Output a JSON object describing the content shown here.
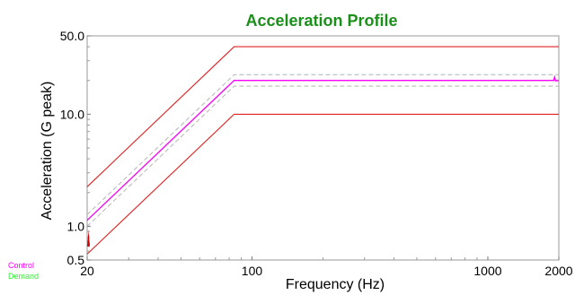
{
  "chart_data": {
    "type": "line",
    "title": "Acceleration Profile",
    "xlabel": "Frequency (Hz)",
    "ylabel": "Acceleration (G peak)",
    "xscale": "log",
    "yscale": "log",
    "xlim": [
      20,
      2000
    ],
    "ylim": [
      0.5,
      50
    ],
    "xticks": [
      20,
      100,
      1000,
      2000
    ],
    "xtick_labels": [
      "20",
      "100",
      "1000",
      "2000"
    ],
    "yticks": [
      0.5,
      1,
      10,
      50
    ],
    "ytick_labels": [
      "0.5",
      "1.0",
      "10.0",
      "50.0"
    ],
    "grid": false,
    "legend_position": "bottom-left",
    "series": [
      {
        "name": "Control",
        "color": "#ff00ff",
        "x": [
          20,
          84,
          1900,
          1920,
          1940,
          2000
        ],
        "y": [
          1.13,
          20.0,
          20.0,
          21.5,
          19.8,
          20.0
        ]
      },
      {
        "name": "Demand",
        "color": "#33ee33",
        "x": [
          20,
          84,
          2000
        ],
        "y": [
          1.13,
          20.0,
          20.0
        ]
      },
      {
        "color": "#e02020",
        "role": "abort-upper",
        "x": [
          20,
          84,
          2000
        ],
        "y": [
          2.25,
          40.0,
          40.0
        ]
      },
      {
        "color": "#e02020",
        "role": "abort-lower",
        "x": [
          20,
          84,
          2000
        ],
        "y": [
          0.565,
          10.0,
          10.0
        ]
      },
      {
        "color": "#bbbbbb",
        "role": "alarm-upper",
        "x": [
          20,
          84,
          2000
        ],
        "y": [
          1.27,
          22.5,
          22.5
        ]
      },
      {
        "color": "#bbbbbb",
        "role": "alarm-lower",
        "x": [
          20,
          84,
          2000
        ],
        "y": [
          1.0,
          17.8,
          17.8
        ]
      }
    ],
    "colors": {
      "title": "#1a8f1a",
      "axis": "#888888",
      "text": "#000000"
    }
  }
}
